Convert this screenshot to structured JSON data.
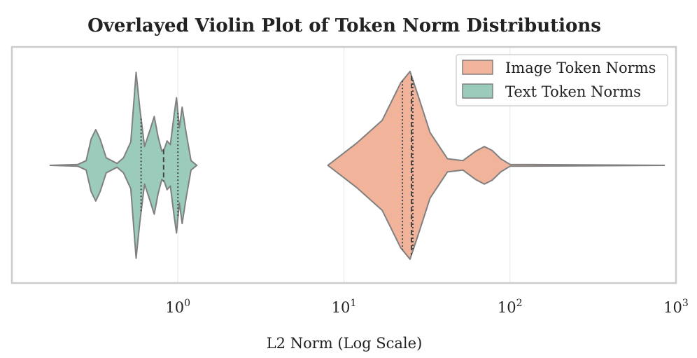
{
  "chart_data": {
    "type": "violin",
    "title": "Overlayed Violin Plot of Token Norm Distributions",
    "xlabel": "L2 Norm (Log Scale)",
    "ylabel": "",
    "xscale": "log",
    "xlim": [
      0.1,
      1000
    ],
    "x_ticks": [
      {
        "value": 1,
        "base": "10",
        "exp": "0"
      },
      {
        "value": 10,
        "base": "10",
        "exp": "1"
      },
      {
        "value": 100,
        "base": "10",
        "exp": "2"
      },
      {
        "value": 1000,
        "base": "10",
        "exp": "3"
      }
    ],
    "grid": true,
    "legend_position": "top-right",
    "series": [
      {
        "name": "Image Token Norms",
        "color": "#f2b39b",
        "range": [
          8.0,
          850
        ],
        "quartiles": [
          22.5,
          25.5,
          26.0
        ],
        "density": [
          [
            8.0,
            0.0
          ],
          [
            12.0,
            0.24
          ],
          [
            17.0,
            0.48
          ],
          [
            22.0,
            0.88
          ],
          [
            25.0,
            1.0
          ],
          [
            28.0,
            0.74
          ],
          [
            33.0,
            0.35
          ],
          [
            42.0,
            0.07
          ],
          [
            52.0,
            0.05
          ],
          [
            62.0,
            0.15
          ],
          [
            70.0,
            0.2
          ],
          [
            78.0,
            0.16
          ],
          [
            88.0,
            0.07
          ],
          [
            100.0,
            0.01
          ],
          [
            850.0,
            0.0
          ]
        ]
      },
      {
        "name": "Text Token Norms",
        "color": "#9acbbb",
        "range": [
          0.17,
          1.3
        ],
        "quartiles": [
          0.6,
          0.82,
          1.0
        ],
        "density": [
          [
            0.17,
            0.0
          ],
          [
            0.25,
            0.01
          ],
          [
            0.28,
            0.05
          ],
          [
            0.3,
            0.28
          ],
          [
            0.32,
            0.38
          ],
          [
            0.34,
            0.28
          ],
          [
            0.37,
            0.08
          ],
          [
            0.43,
            0.02
          ],
          [
            0.47,
            0.08
          ],
          [
            0.52,
            0.25
          ],
          [
            0.56,
            0.99
          ],
          [
            0.59,
            0.6
          ],
          [
            0.63,
            0.2
          ],
          [
            0.68,
            0.38
          ],
          [
            0.72,
            0.52
          ],
          [
            0.76,
            0.3
          ],
          [
            0.8,
            0.15
          ],
          [
            0.83,
            0.18
          ],
          [
            0.86,
            0.26
          ],
          [
            0.9,
            0.22
          ],
          [
            0.95,
            0.55
          ],
          [
            0.98,
            0.72
          ],
          [
            1.02,
            0.4
          ],
          [
            1.06,
            0.62
          ],
          [
            1.12,
            0.35
          ],
          [
            1.2,
            0.05
          ],
          [
            1.3,
            0.0
          ]
        ]
      }
    ]
  }
}
